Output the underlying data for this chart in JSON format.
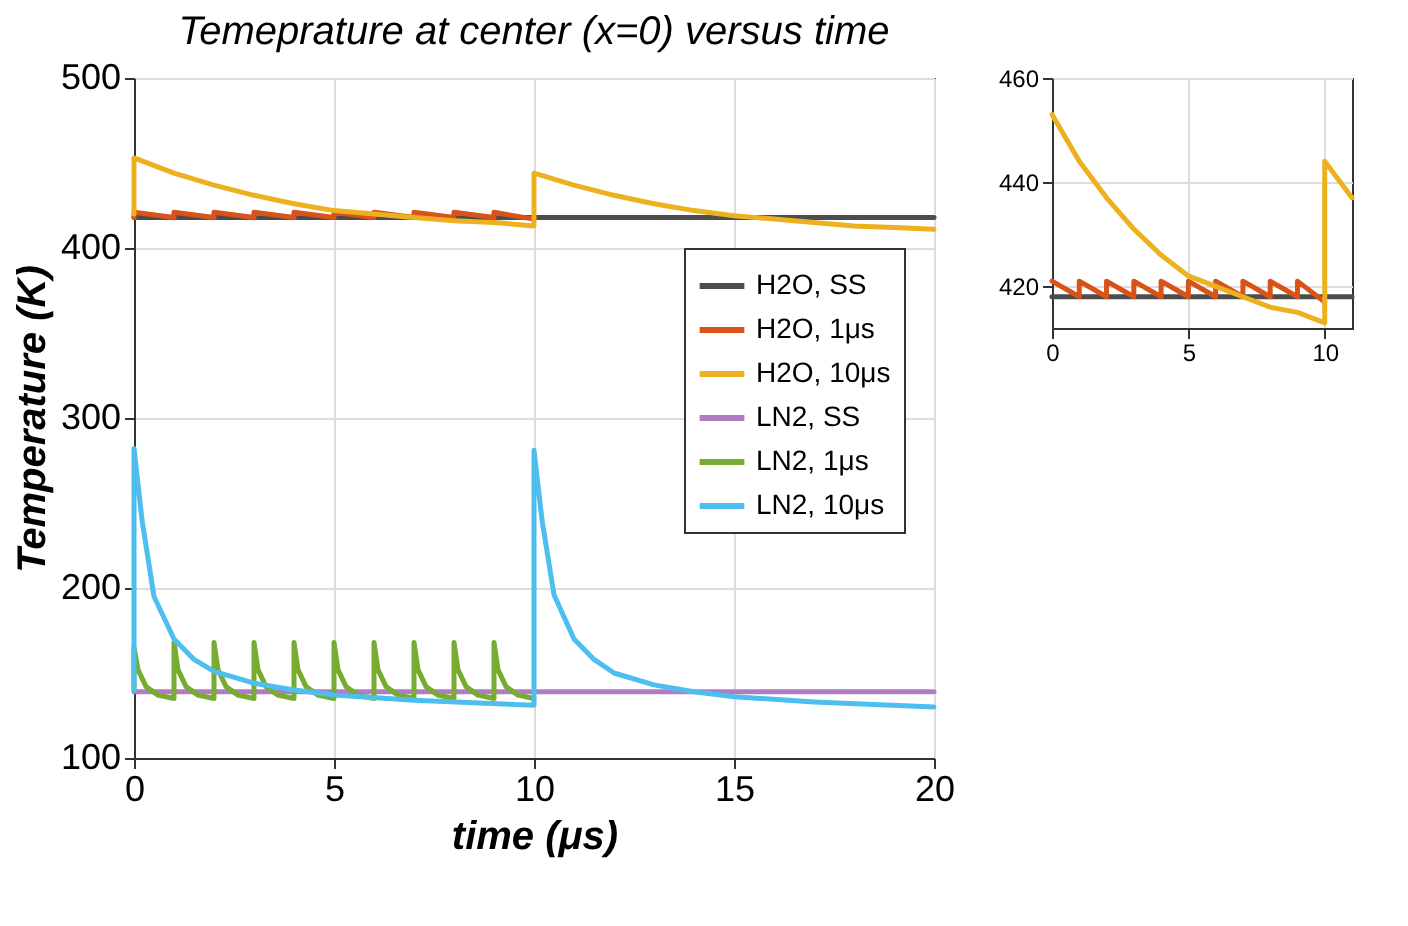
{
  "chart_data": [
    {
      "type": "line",
      "title": "Temeprature at center (x=0) versus time",
      "xlabel": "time (μs)",
      "ylabel": "Temperature (K)",
      "xlim": [
        0,
        20
      ],
      "xticks": [
        0,
        5,
        10,
        15,
        20
      ],
      "ylim": [
        100,
        500
      ],
      "yticks": [
        100,
        200,
        300,
        400,
        500
      ],
      "grid": true,
      "legend": "right",
      "series": [
        {
          "name": "H2O, SS",
          "color": "#4d4d4d",
          "x": [
            0,
            20
          ],
          "values": [
            418,
            418
          ]
        },
        {
          "name": "H2O, 1μs",
          "color": "#d95319",
          "x": [
            0,
            0,
            1,
            1,
            2,
            2,
            3,
            3,
            4,
            4,
            5,
            5,
            6,
            6,
            7,
            7,
            8,
            8,
            9,
            9,
            10
          ],
          "values": [
            418,
            421,
            418,
            421,
            418,
            421,
            418,
            421,
            418,
            421,
            418,
            421,
            418,
            421,
            418,
            421,
            418,
            421,
            418,
            421,
            417
          ]
        },
        {
          "name": "H2O, 10μs",
          "color": "#edb120",
          "x": [
            0,
            0,
            1,
            2,
            3,
            4,
            5,
            6,
            7,
            8,
            9,
            10,
            10,
            11,
            12,
            13,
            14,
            15,
            16,
            17,
            18,
            19,
            20
          ],
          "values": [
            420,
            453,
            444,
            437,
            431,
            426,
            422,
            420,
            418,
            416,
            415,
            413,
            444,
            437,
            431,
            426,
            422,
            419,
            417,
            415,
            413,
            412,
            411
          ]
        },
        {
          "name": "LN2, SS",
          "color": "#b07cc6",
          "x": [
            0,
            20
          ],
          "values": [
            139,
            139
          ]
        },
        {
          "name": "LN2, 1μs",
          "color": "#77ac30",
          "x": [
            0,
            0,
            0.1,
            0.3,
            0.6,
            1,
            1,
            1.1,
            1.3,
            1.6,
            2,
            2,
            2.1,
            2.3,
            2.6,
            3,
            3,
            3.1,
            3.3,
            3.6,
            4,
            4,
            4.1,
            4.3,
            4.6,
            5,
            5,
            5.1,
            5.3,
            5.6,
            6,
            6,
            6.1,
            6.3,
            6.6,
            7,
            7,
            7.1,
            7.3,
            7.6,
            8,
            8,
            8.1,
            8.3,
            8.6,
            9,
            9,
            9.1,
            9.3,
            9.6,
            10
          ],
          "values": [
            140,
            165,
            152,
            142,
            137,
            135,
            168,
            152,
            142,
            137,
            135,
            168,
            152,
            142,
            137,
            135,
            168,
            152,
            142,
            137,
            135,
            168,
            152,
            142,
            137,
            135,
            168,
            152,
            142,
            137,
            135,
            168,
            152,
            142,
            137,
            135,
            168,
            152,
            142,
            137,
            135,
            168,
            152,
            142,
            137,
            135,
            168,
            152,
            142,
            137,
            135
          ]
        },
        {
          "name": "LN2, 10μs",
          "color": "#4dbeee",
          "x": [
            0,
            0,
            0.2,
            0.5,
            1,
            1.5,
            2,
            3,
            4,
            5,
            7,
            10,
            10,
            10.2,
            10.5,
            11,
            11.5,
            12,
            13,
            14,
            15,
            17,
            20
          ],
          "values": [
            140,
            282,
            240,
            195,
            170,
            158,
            151,
            144,
            140,
            137,
            134,
            131,
            281,
            240,
            196,
            170,
            158,
            150,
            143,
            139,
            136,
            133,
            130
          ]
        }
      ]
    },
    {
      "type": "line",
      "xlim": [
        0,
        11
      ],
      "xticks": [
        0,
        5,
        10
      ],
      "ylim": [
        412,
        460
      ],
      "yticks": [
        420,
        440,
        460
      ],
      "grid": true,
      "series": [
        {
          "color": "#4d4d4d",
          "x": [
            0,
            11
          ],
          "values": [
            418,
            418
          ]
        },
        {
          "color": "#d95319",
          "x": [
            0,
            1,
            1,
            2,
            2,
            3,
            3,
            4,
            4,
            5,
            5,
            6,
            6,
            7,
            7,
            8,
            8,
            9,
            9,
            10
          ],
          "values": [
            421,
            418,
            421,
            418,
            421,
            418,
            421,
            418,
            421,
            418,
            421,
            418,
            421,
            418,
            421,
            418,
            421,
            418,
            421,
            417
          ]
        },
        {
          "color": "#edb120",
          "x": [
            0,
            1,
            2,
            3,
            4,
            5,
            6,
            7,
            8,
            9,
            10,
            10,
            11
          ],
          "values": [
            453,
            444,
            437,
            431,
            426,
            422,
            420,
            418,
            416,
            415,
            413,
            444,
            437
          ]
        }
      ]
    }
  ]
}
